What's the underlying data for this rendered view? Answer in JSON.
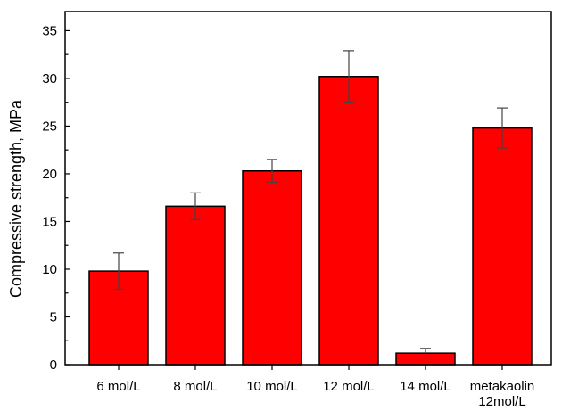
{
  "chart_data": {
    "type": "bar",
    "title": "",
    "xlabel": "",
    "ylabel": "Compressive strength, MPa",
    "ylim": [
      0,
      37
    ],
    "yticks": [
      0,
      5,
      10,
      15,
      20,
      25,
      30,
      35
    ],
    "categories": [
      [
        "6 mol/L"
      ],
      [
        "8 mol/L"
      ],
      [
        "10 mol/L"
      ],
      [
        "12 mol/L"
      ],
      [
        "14 mol/L"
      ],
      [
        "metakaolin",
        "12mol/L"
      ]
    ],
    "values": [
      9.8,
      16.6,
      20.3,
      30.2,
      1.2,
      24.8
    ],
    "errors": [
      1.9,
      1.4,
      1.2,
      2.7,
      0.5,
      2.1
    ],
    "grid": false,
    "legend": "none",
    "colors": {
      "bar": "#ff0000",
      "outline": "#000000",
      "axis": "#000000"
    }
  }
}
